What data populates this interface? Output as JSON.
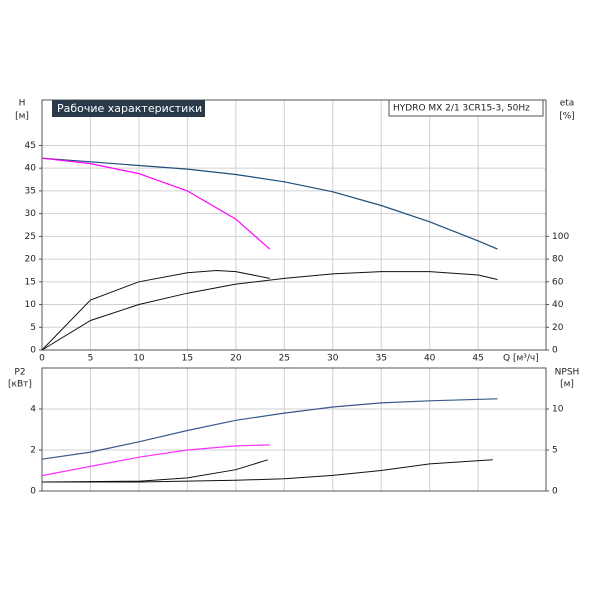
{
  "chart_data": [
    {
      "type": "line",
      "title": "Рабочие характеристики",
      "subtitle": "HYDRO MX 2/1 3CR15-3, 50Hz",
      "y_label": "H",
      "y_unit": "[м]",
      "y2_label": "eta",
      "y2_unit": "[%]",
      "x_label": "Q [м³/ч]",
      "xlim": [
        0,
        52
      ],
      "xticks": [
        0,
        5,
        10,
        15,
        20,
        25,
        30,
        35,
        40,
        45
      ],
      "ylim": [
        0,
        55
      ],
      "yticks": [
        0,
        5,
        10,
        15,
        20,
        25,
        30,
        35,
        40,
        45
      ],
      "y2lim": [
        0,
        220
      ],
      "y2ticks": [
        0,
        20,
        40,
        60,
        80,
        100
      ],
      "grid": true,
      "series": [
        {
          "color": "#1f4e79",
          "x": [
            0,
            5,
            10,
            15,
            20,
            25,
            30,
            35,
            40,
            45,
            47
          ],
          "values": [
            42.2,
            41.4,
            40.6,
            39.8,
            38.6,
            37,
            34.8,
            31.8,
            28.2,
            24,
            22.2
          ]
        },
        {
          "color": "#ff00ff",
          "x": [
            0,
            5,
            10,
            15,
            20,
            23.5
          ],
          "values": [
            42.2,
            41,
            38.8,
            35,
            28.8,
            22.2
          ]
        },
        {
          "color": "#111111",
          "axis": "y2",
          "x": [
            0,
            5,
            10,
            15,
            20,
            25,
            30,
            35,
            40,
            45,
            47
          ],
          "values": [
            0,
            26,
            40,
            50,
            58,
            63,
            67,
            69,
            69,
            66,
            62
          ]
        },
        {
          "color": "#111111",
          "axis": "y2",
          "x": [
            0,
            5,
            10,
            15,
            18,
            20,
            23.5
          ],
          "values": [
            0,
            44,
            60,
            68,
            70,
            69,
            63
          ]
        }
      ]
    },
    {
      "type": "line",
      "y_label": "P2",
      "y_unit": "[кВт]",
      "y2_label": "NPSH",
      "y2_unit": "[м]",
      "xlim": [
        0,
        52
      ],
      "ylim": [
        0,
        6
      ],
      "yticks": [
        0,
        2,
        4
      ],
      "y2lim": [
        0,
        15
      ],
      "y2ticks": [
        0,
        5,
        10
      ],
      "grid": true,
      "series": [
        {
          "color": "#3a5a8c",
          "x": [
            0,
            5,
            10,
            15,
            20,
            25,
            30,
            35,
            40,
            47
          ],
          "values": [
            1.55,
            1.9,
            2.4,
            2.95,
            3.45,
            3.8,
            4.1,
            4.3,
            4.4,
            4.5
          ]
        },
        {
          "color": "#ff33ff",
          "x": [
            0,
            5,
            10,
            15,
            20,
            23.5
          ],
          "values": [
            0.75,
            1.2,
            1.65,
            2.0,
            2.2,
            2.25
          ]
        },
        {
          "color": "#111111",
          "axis": "y2",
          "x": [
            0,
            10,
            20,
            25,
            30,
            35,
            40,
            46.5
          ],
          "values": [
            1.1,
            1.1,
            1.3,
            1.5,
            1.9,
            2.5,
            3.3,
            3.8
          ]
        },
        {
          "color": "#111111",
          "axis": "y2",
          "x": [
            0,
            10,
            15,
            20,
            23.3
          ],
          "values": [
            1.1,
            1.2,
            1.6,
            2.6,
            3.8
          ]
        }
      ]
    }
  ]
}
